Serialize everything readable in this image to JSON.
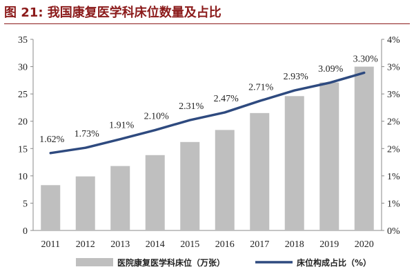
{
  "title": "图 21:  我国康复医学科床位数量及占比",
  "chart_data": {
    "type": "bar+line",
    "categories": [
      "2011",
      "2012",
      "2013",
      "2014",
      "2015",
      "2016",
      "2017",
      "2018",
      "2019",
      "2020"
    ],
    "series": [
      {
        "name": "医院康复医学科床位（万张）",
        "type": "bar",
        "axis": "left",
        "values": [
          8.3,
          9.9,
          11.8,
          13.8,
          16.2,
          18.4,
          21.5,
          24.6,
          27.1,
          30.0
        ]
      },
      {
        "name": "床位构成占比（%）",
        "type": "line",
        "axis": "right",
        "values": [
          1.62,
          1.73,
          1.91,
          2.1,
          2.31,
          2.47,
          2.71,
          2.93,
          3.09,
          3.3
        ],
        "labels": [
          "1.62%",
          "1.73%",
          "1.91%",
          "2.10%",
          "2.31%",
          "2.47%",
          "2.71%",
          "2.93%",
          "3.09%",
          "3.30%"
        ]
      }
    ],
    "yleft": {
      "min": 0,
      "max": 35,
      "ticks": [
        "0",
        "5",
        "10",
        "15",
        "20",
        "25",
        "30",
        "35"
      ]
    },
    "yright": {
      "min": 0,
      "max": 4,
      "ticks": [
        "0%",
        "1%",
        "1%",
        "2%",
        "2%",
        "3%",
        "3%",
        "4%"
      ]
    },
    "colors": {
      "bar": "#bfbfbf",
      "line": "#2e4a7f"
    },
    "legend_position": "bottom",
    "grid": false
  }
}
